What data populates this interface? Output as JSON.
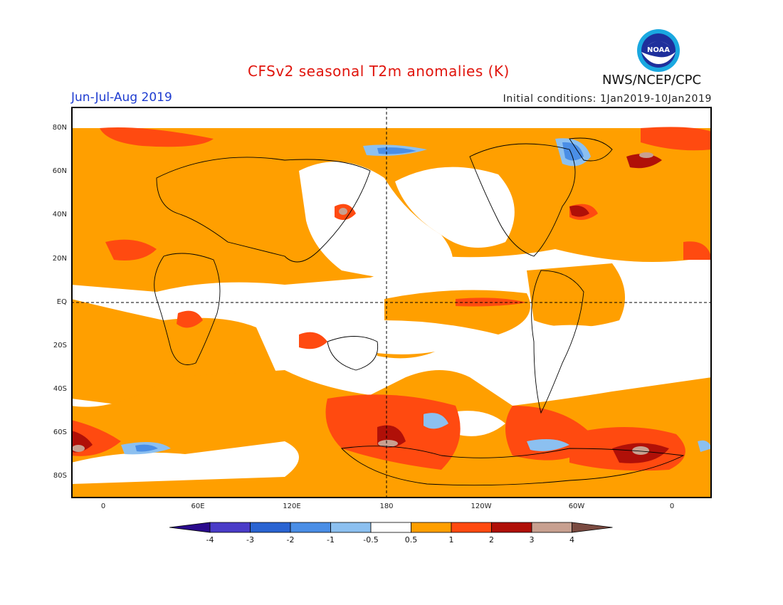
{
  "header": {
    "title": "CFSv2 seasonal T2m anomalies (K)",
    "season": "Jun-Jul-Aug 2019",
    "initial_conditions": "Initial conditions: 1Jan2019-10Jan2019",
    "organization": "NWS/NCEP/CPC",
    "logo_text": "NOAA"
  },
  "axes": {
    "lat_labels": [
      "80N",
      "60N",
      "40N",
      "20N",
      "EQ",
      "20S",
      "40S",
      "60S",
      "80S"
    ],
    "lon_labels": [
      "0",
      "60E",
      "120E",
      "180",
      "120W",
      "60W",
      "0"
    ]
  },
  "colorbar": {
    "labels": [
      "-4",
      "-3",
      "-2",
      "-1",
      "-0.5",
      "0.5",
      "1",
      "2",
      "3",
      "4"
    ],
    "colors": [
      "#2a0a8c",
      "#4a3cc8",
      "#2a64d2",
      "#4a8ee6",
      "#8cc0f0",
      "#ffffff",
      "#ff9f00",
      "#ff4a10",
      "#b01008",
      "#c8a090",
      "#7a4a40"
    ]
  }
}
